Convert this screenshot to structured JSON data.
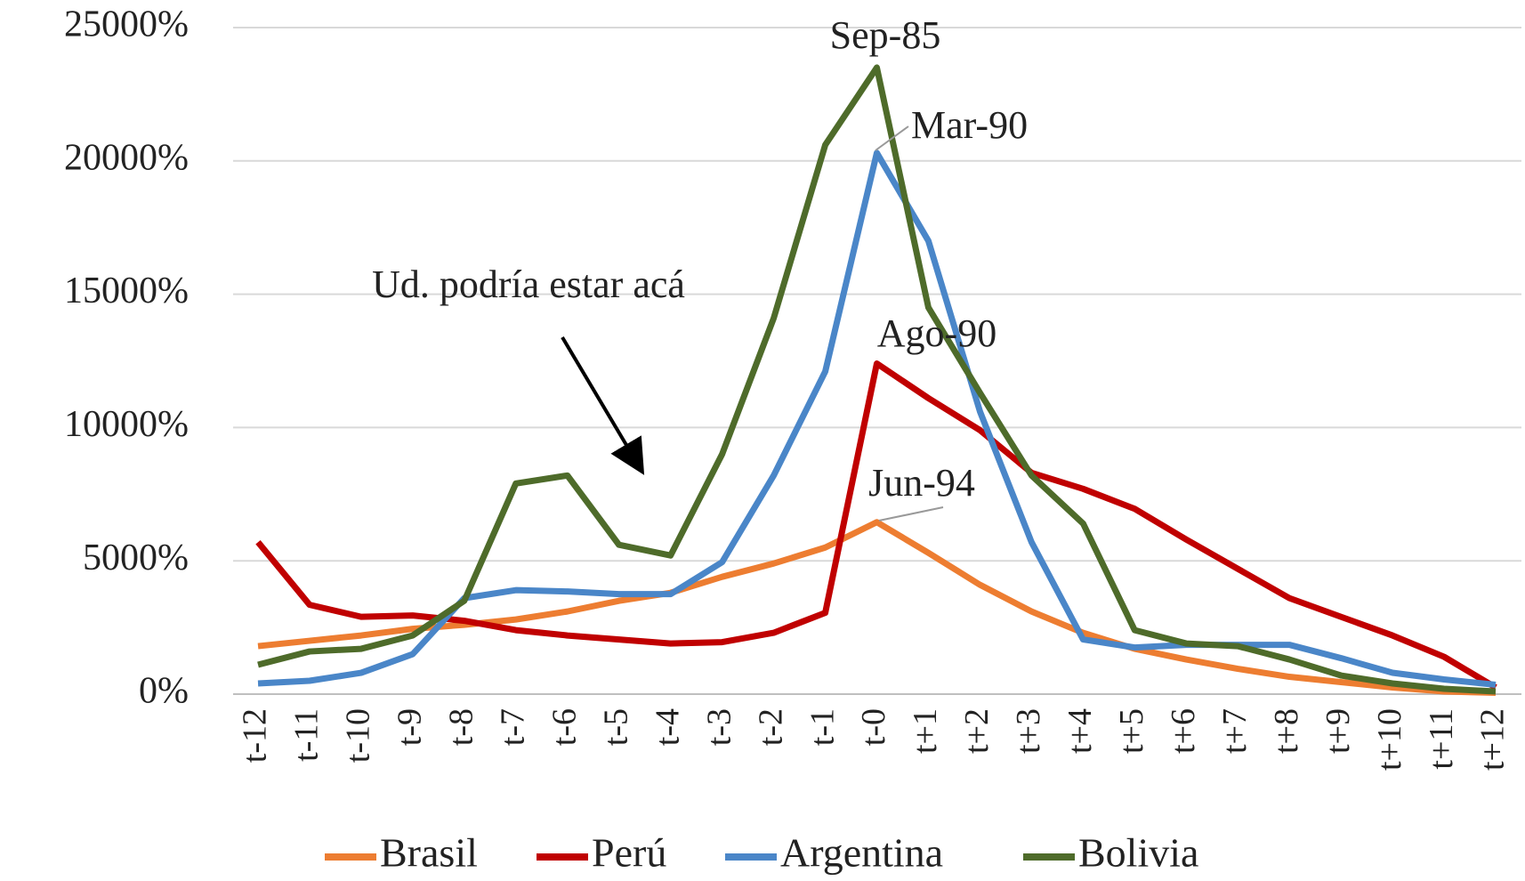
{
  "chart_data": {
    "type": "line",
    "categories": [
      "t-12",
      "t-11",
      "t-10",
      "t-9",
      "t-8",
      "t-7",
      "t-6",
      "t-5",
      "t-4",
      "t-3",
      "t-2",
      "t-1",
      "t-0",
      "t+1",
      "t+2",
      "t+3",
      "t+4",
      "t+5",
      "t+6",
      "t+7",
      "t+8",
      "t+9",
      "t+10",
      "t+11",
      "t+12"
    ],
    "series": [
      {
        "name": "Brasil",
        "color": "#ed7d31",
        "values": [
          1800,
          2000,
          2200,
          2450,
          2600,
          2800,
          3100,
          3500,
          3800,
          4400,
          4900,
          5500,
          6450,
          5300,
          4100,
          3100,
          2300,
          1700,
          1300,
          950,
          650,
          450,
          250,
          100,
          50
        ]
      },
      {
        "name": "Perú",
        "color": "#c00000",
        "values": [
          5700,
          3350,
          2900,
          2950,
          2750,
          2400,
          2200,
          2050,
          1900,
          1950,
          2300,
          3050,
          12400,
          11100,
          9900,
          8300,
          7700,
          6950,
          5800,
          4700,
          3600,
          2900,
          2200,
          1400,
          250
        ]
      },
      {
        "name": "Argentina",
        "color": "#4a86c8",
        "values": [
          400,
          500,
          800,
          1500,
          3600,
          3900,
          3850,
          3750,
          3750,
          4950,
          8200,
          12100,
          20300,
          17000,
          10600,
          5700,
          2050,
          1750,
          1850,
          1850,
          1850,
          1350,
          800,
          550,
          350
        ]
      },
      {
        "name": "Bolivia",
        "color": "#4e6b2a",
        "values": [
          1100,
          1600,
          1700,
          2200,
          3500,
          7900,
          8200,
          5600,
          5200,
          9000,
          14100,
          20600,
          23500,
          14500,
          11300,
          8200,
          6400,
          2400,
          1900,
          1800,
          1300,
          700,
          400,
          200,
          100
        ]
      }
    ],
    "ylim": [
      0,
      25000
    ],
    "yticks": [
      {
        "value": 0,
        "label": "0%"
      },
      {
        "value": 5000,
        "label": "5000%"
      },
      {
        "value": 10000,
        "label": "10000%"
      },
      {
        "value": 15000,
        "label": "15000%"
      },
      {
        "value": 20000,
        "label": "20000%"
      },
      {
        "value": 25000,
        "label": "25000%"
      }
    ],
    "grid": true,
    "legend": "bottom",
    "annotations": [
      "Sep-85",
      "Mar-90",
      "Ago-90",
      "Jun-94",
      "Ud. podría estar acá"
    ]
  }
}
